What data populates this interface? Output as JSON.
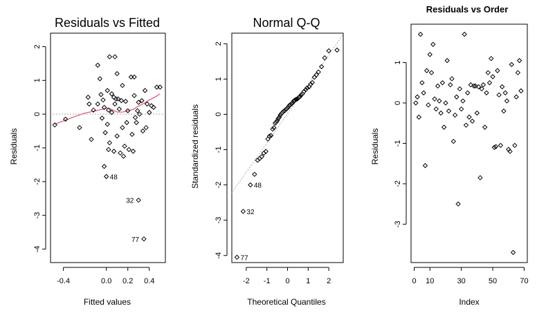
{
  "chart_data": [
    {
      "type": "scatter",
      "title": "Residuals vs Fitted",
      "xlabel": "Fitted values",
      "ylabel": "Residuals",
      "xlim": [
        -0.52,
        0.55
      ],
      "ylim": [
        -4.4,
        2.4
      ],
      "xticks": [
        -0.4,
        0.0,
        0.2,
        0.4
      ],
      "xtick_labels": [
        "-0.4",
        "0.0",
        "0.2",
        "0.4"
      ],
      "yticks": [
        -4,
        -3,
        -2,
        -1,
        0,
        1,
        2
      ],
      "ytick_labels": [
        "-4",
        "-3",
        "-2",
        "-1",
        "0",
        "1",
        "2"
      ],
      "reference_line": {
        "y": 0,
        "style": "dotted",
        "color": "#aaaaaa"
      },
      "smooth_color": "#df536b",
      "smooth": [
        [
          -0.48,
          -0.3
        ],
        [
          -0.4,
          -0.2
        ],
        [
          -0.3,
          -0.08
        ],
        [
          -0.2,
          0.03
        ],
        [
          -0.1,
          0.1
        ],
        [
          -0.02,
          0.16
        ],
        [
          0.02,
          0.18
        ],
        [
          0.06,
          0.12
        ],
        [
          0.1,
          0.06
        ],
        [
          0.15,
          0.06
        ],
        [
          0.2,
          0.1
        ],
        [
          0.25,
          0.14
        ],
        [
          0.3,
          0.24
        ],
        [
          0.35,
          0.32
        ],
        [
          0.4,
          0.42
        ],
        [
          0.45,
          0.5
        ],
        [
          0.5,
          0.6
        ]
      ],
      "points": [
        [
          -0.48,
          -0.32
        ],
        [
          -0.38,
          -0.15
        ],
        [
          -0.25,
          -0.4
        ],
        [
          -0.17,
          0.5
        ],
        [
          -0.16,
          0.3
        ],
        [
          -0.14,
          -0.75
        ],
        [
          -0.12,
          0.12
        ],
        [
          -0.08,
          1.45
        ],
        [
          -0.08,
          0.3
        ],
        [
          -0.06,
          1.05
        ],
        [
          -0.05,
          0.58
        ],
        [
          -0.04,
          -0.12
        ],
        [
          -0.03,
          0.42
        ],
        [
          -0.02,
          -1.55
        ],
        [
          -0.02,
          0.2
        ],
        [
          -0.01,
          -0.55
        ],
        [
          0.0,
          -1.85
        ],
        [
          0.01,
          0.7
        ],
        [
          0.01,
          -0.3
        ],
        [
          0.02,
          0.12
        ],
        [
          0.02,
          -1.05
        ],
        [
          0.03,
          1.7
        ],
        [
          0.03,
          -0.85
        ],
        [
          0.05,
          0.6
        ],
        [
          0.05,
          0.05
        ],
        [
          0.07,
          0.5
        ],
        [
          0.07,
          -1.1
        ],
        [
          0.08,
          1.7
        ],
        [
          0.08,
          0.3
        ],
        [
          0.09,
          0.45
        ],
        [
          0.1,
          1.2
        ],
        [
          0.1,
          -0.65
        ],
        [
          0.11,
          0.45
        ],
        [
          0.12,
          0.15
        ],
        [
          0.13,
          -1.15
        ],
        [
          0.14,
          0.4
        ],
        [
          0.15,
          0.85
        ],
        [
          0.15,
          -0.4
        ],
        [
          0.16,
          -1.25
        ],
        [
          0.17,
          -0.95
        ],
        [
          0.18,
          0.38
        ],
        [
          0.19,
          -0.25
        ],
        [
          0.2,
          0.1
        ],
        [
          0.21,
          -1.05
        ],
        [
          0.23,
          1.1
        ],
        [
          0.24,
          -0.6
        ],
        [
          0.25,
          -1.1
        ],
        [
          0.26,
          0.55
        ],
        [
          0.26,
          1.1
        ],
        [
          0.27,
          -0.1
        ],
        [
          0.28,
          -0.25
        ],
        [
          0.29,
          0.1
        ],
        [
          0.3,
          0.35
        ],
        [
          0.31,
          0.0
        ],
        [
          0.33,
          0.4
        ],
        [
          0.34,
          -0.5
        ],
        [
          0.36,
          0.7
        ],
        [
          0.37,
          -0.4
        ],
        [
          0.38,
          0.3
        ],
        [
          0.4,
          0.05
        ],
        [
          0.42,
          0.25
        ],
        [
          0.44,
          0.2
        ],
        [
          0.47,
          0.8
        ],
        [
          0.5,
          0.8
        ],
        [
          0.3,
          -2.55
        ],
        [
          0.35,
          -3.7
        ]
      ],
      "annotations": [
        {
          "text": "48",
          "x": 0.0,
          "y": -1.85
        },
        {
          "text": "32",
          "x": 0.3,
          "y": -2.55
        },
        {
          "text": "77",
          "x": 0.35,
          "y": -3.7
        }
      ]
    },
    {
      "type": "scatter",
      "title": "Normal Q-Q",
      "xlabel": "Theoretical Quantiles",
      "ylabel": "Standardized residuals",
      "xlim": [
        -2.7,
        2.7
      ],
      "ylim": [
        -4.2,
        2.3
      ],
      "xticks": [
        -2,
        -1,
        0,
        1,
        2
      ],
      "xtick_labels": [
        "-2",
        "-1",
        "0",
        "1",
        "2"
      ],
      "yticks": [
        -4,
        -3,
        -2,
        -1,
        0,
        1,
        2
      ],
      "ytick_labels": [
        "-4",
        "-3",
        "-2",
        "-1",
        "0",
        "1",
        "2"
      ],
      "reference_line": {
        "intercept": 0.02,
        "slope": 0.83,
        "style": "dotted",
        "color": "#aaaaaa"
      },
      "points": [
        [
          -2.45,
          -4.05
        ],
        [
          -2.15,
          -2.75
        ],
        [
          -1.8,
          -2.0
        ],
        [
          -1.6,
          -1.7
        ],
        [
          -1.45,
          -1.3
        ],
        [
          -1.35,
          -1.25
        ],
        [
          -1.25,
          -1.2
        ],
        [
          -1.15,
          -1.1
        ],
        [
          -1.05,
          -1.05
        ],
        [
          -0.95,
          -0.7
        ],
        [
          -0.88,
          -0.62
        ],
        [
          -0.8,
          -0.6
        ],
        [
          -0.72,
          -0.42
        ],
        [
          -0.66,
          -0.38
        ],
        [
          -0.6,
          -0.25
        ],
        [
          -0.55,
          -0.22
        ],
        [
          -0.5,
          -0.18
        ],
        [
          -0.45,
          -0.12
        ],
        [
          -0.4,
          -0.08
        ],
        [
          -0.35,
          -0.02
        ],
        [
          -0.3,
          0.02
        ],
        [
          -0.25,
          0.05
        ],
        [
          -0.2,
          0.08
        ],
        [
          -0.15,
          0.1
        ],
        [
          -0.1,
          0.13
        ],
        [
          -0.05,
          0.15
        ],
        [
          0.0,
          0.18
        ],
        [
          0.05,
          0.22
        ],
        [
          0.1,
          0.26
        ],
        [
          0.15,
          0.28
        ],
        [
          0.2,
          0.3
        ],
        [
          0.25,
          0.33
        ],
        [
          0.3,
          0.38
        ],
        [
          0.35,
          0.4
        ],
        [
          0.4,
          0.42
        ],
        [
          0.45,
          0.43
        ],
        [
          0.5,
          0.45
        ],
        [
          0.55,
          0.48
        ],
        [
          0.6,
          0.5
        ],
        [
          0.66,
          0.55
        ],
        [
          0.72,
          0.58
        ],
        [
          0.8,
          0.65
        ],
        [
          0.88,
          0.7
        ],
        [
          0.95,
          0.75
        ],
        [
          1.05,
          0.78
        ],
        [
          1.12,
          0.85
        ],
        [
          1.2,
          0.9
        ],
        [
          1.3,
          1.05
        ],
        [
          1.4,
          1.12
        ],
        [
          1.5,
          1.2
        ],
        [
          1.65,
          1.35
        ],
        [
          1.8,
          1.6
        ],
        [
          2.0,
          1.8
        ],
        [
          2.4,
          1.82
        ]
      ],
      "annotations": [
        {
          "text": "48",
          "x": -1.8,
          "y": -2.0
        },
        {
          "text": "32",
          "x": -2.15,
          "y": -2.75
        },
        {
          "text": "77",
          "x": -2.45,
          "y": -4.05
        }
      ]
    },
    {
      "type": "scatter",
      "title": "Residuals vs Order",
      "xlabel": "Index",
      "ylabel": "Residuals",
      "xlim": [
        -2,
        72
      ],
      "ylim": [
        -3.95,
        1.95
      ],
      "xticks": [
        0,
        10,
        30,
        50,
        70
      ],
      "xtick_labels": [
        "0",
        "10",
        "30",
        "50",
        "70"
      ],
      "yticks": [
        -3,
        -2,
        -1,
        0,
        1
      ],
      "ytick_labels": [
        "-3",
        "-2",
        "-1",
        "0",
        "1"
      ],
      "points": [
        [
          1,
          0.0
        ],
        [
          2,
          0.15
        ],
        [
          3,
          -0.35
        ],
        [
          4,
          1.7
        ],
        [
          5,
          0.5
        ],
        [
          6,
          0.25
        ],
        [
          7,
          -1.55
        ],
        [
          8,
          0.8
        ],
        [
          9,
          -0.05
        ],
        [
          10,
          1.2
        ],
        [
          11,
          0.75
        ],
        [
          12,
          1.45
        ],
        [
          13,
          0.1
        ],
        [
          14,
          -0.15
        ],
        [
          15,
          0.42
        ],
        [
          16,
          0.05
        ],
        [
          17,
          -0.25
        ],
        [
          18,
          0.5
        ],
        [
          19,
          -0.6
        ],
        [
          20,
          0.0
        ],
        [
          21,
          1.05
        ],
        [
          22,
          -0.2
        ],
        [
          23,
          0.45
        ],
        [
          24,
          0.6
        ],
        [
          25,
          -0.95
        ],
        [
          26,
          -0.3
        ],
        [
          27,
          0.15
        ],
        [
          28,
          -2.5
        ],
        [
          29,
          0.35
        ],
        [
          30,
          -0.15
        ],
        [
          31,
          0.05
        ],
        [
          32,
          1.7
        ],
        [
          33,
          -0.55
        ],
        [
          34,
          0.25
        ],
        [
          35,
          -0.35
        ],
        [
          36,
          0.45
        ],
        [
          37,
          -0.45
        ],
        [
          38,
          0.42
        ],
        [
          39,
          0.42
        ],
        [
          40,
          -0.25
        ],
        [
          41,
          0.4
        ],
        [
          42,
          -1.85
        ],
        [
          43,
          0.35
        ],
        [
          44,
          0.45
        ],
        [
          45,
          -0.6
        ],
        [
          46,
          0.25
        ],
        [
          47,
          0.75
        ],
        [
          48,
          0.5
        ],
        [
          49,
          1.1
        ],
        [
          50,
          0.65
        ],
        [
          51,
          -1.1
        ],
        [
          52,
          -1.08
        ],
        [
          53,
          0.8
        ],
        [
          54,
          0.2
        ],
        [
          55,
          -1.05
        ],
        [
          56,
          0.4
        ],
        [
          57,
          -0.2
        ],
        [
          58,
          0.25
        ],
        [
          59,
          0.05
        ],
        [
          60,
          -1.15
        ],
        [
          61,
          -1.2
        ],
        [
          62,
          0.95
        ],
        [
          63,
          -3.7
        ],
        [
          64,
          -1.05
        ],
        [
          65,
          0.15
        ],
        [
          66,
          0.75
        ],
        [
          67,
          1.05
        ],
        [
          68,
          0.3
        ]
      ]
    }
  ]
}
